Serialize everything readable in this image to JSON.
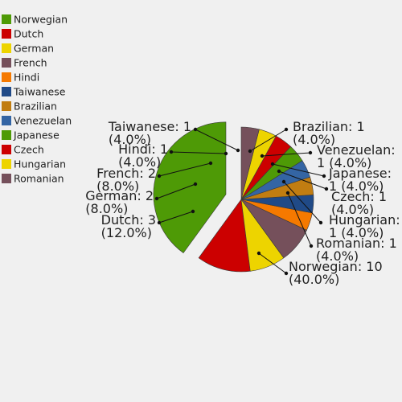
{
  "chart_data": {
    "type": "pie",
    "title": "",
    "slices": [
      {
        "label": "Norwegian",
        "value": 10,
        "percent": "40.0%",
        "color": "#4e9a06",
        "exploded": true
      },
      {
        "label": "Dutch",
        "value": 3,
        "percent": "12.0%",
        "color": "#cc0000"
      },
      {
        "label": "German",
        "value": 2,
        "percent": "8.0%",
        "color": "#edd400"
      },
      {
        "label": "French",
        "value": 2,
        "percent": "8.0%",
        "color": "#75505b"
      },
      {
        "label": "Hindi",
        "value": 1,
        "percent": "4.0%",
        "color": "#f57900"
      },
      {
        "label": "Taiwanese",
        "value": 1,
        "percent": "4.0%",
        "color": "#204a87"
      },
      {
        "label": "Brazilian",
        "value": 1,
        "percent": "4.0%",
        "color": "#c17d11"
      },
      {
        "label": "Venezuelan",
        "value": 1,
        "percent": "4.0%",
        "color": "#3465a4"
      },
      {
        "label": "Japanese",
        "value": 1,
        "percent": "4.0%",
        "color": "#4e9a06"
      },
      {
        "label": "Czech",
        "value": 1,
        "percent": "4.0%",
        "color": "#cc0000"
      },
      {
        "label": "Hungarian",
        "value": 1,
        "percent": "4.0%",
        "color": "#edd400"
      },
      {
        "label": "Romanian",
        "value": 1,
        "percent": "4.0%",
        "color": "#75505b"
      }
    ],
    "labels": {
      "Norwegian": [
        "Norwegian: 10",
        "(40.0%)"
      ],
      "Dutch": [
        "Dutch: 3",
        "(12.0%)"
      ],
      "German": [
        "German: 2",
        "(8.0%)"
      ],
      "French": [
        "French: 2",
        "(8.0%)"
      ],
      "Hindi": [
        "Hindi: 1",
        "(4.0%)"
      ],
      "Taiwanese": [
        "Taiwanese: 1",
        "(4.0%)"
      ],
      "Brazilian": [
        "Brazilian: 1",
        "(4.0%)"
      ],
      "Venezuelan": [
        "Venezuelan:",
        "1 (4.0%)"
      ],
      "Japanese": [
        "Japanese:",
        "1 (4.0%)"
      ],
      "Czech": [
        "Czech: 1",
        "(4.0%)"
      ],
      "Hungarian": [
        "Hungarian:",
        "1 (4.0%)"
      ],
      "Romanian": [
        "Romanian: 1",
        "(4.0%)"
      ]
    },
    "legend": {
      "placement": "top-left",
      "entries": [
        "Norwegian",
        "Dutch",
        "German",
        "French",
        "Hindi",
        "Taiwanese",
        "Brazilian",
        "Venezuelan",
        "Japanese",
        "Czech",
        "Hungarian",
        "Romanian"
      ]
    }
  }
}
